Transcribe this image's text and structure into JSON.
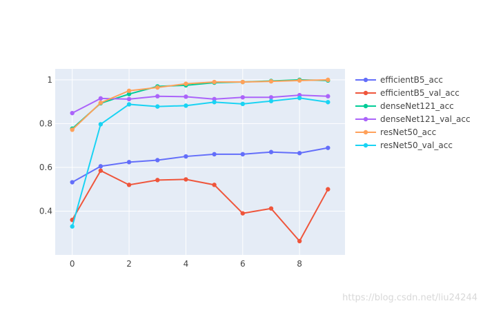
{
  "chart_data": {
    "type": "line",
    "x": [
      0,
      1,
      2,
      3,
      4,
      5,
      6,
      7,
      8,
      9
    ],
    "xlim": [
      -0.6,
      9.6
    ],
    "ylim": [
      0.2,
      1.05
    ],
    "xticks": [
      0,
      2,
      4,
      6,
      8
    ],
    "yticks": [
      0.4,
      0.6,
      0.8,
      1
    ],
    "grid": true,
    "legend_position": "top-right",
    "plot_background": "#e5ecf6",
    "series": [
      {
        "name": "efficientB5_acc",
        "color": "#636efa",
        "values": [
          0.532,
          0.605,
          0.624,
          0.633,
          0.65,
          0.66,
          0.66,
          0.67,
          0.665,
          0.689
        ]
      },
      {
        "name": "efficientB5_val_acc",
        "color": "#ef553b",
        "values": [
          0.36,
          0.585,
          0.52,
          0.542,
          0.545,
          0.52,
          0.39,
          0.412,
          0.263,
          0.5
        ]
      },
      {
        "name": "denseNet121_acc",
        "color": "#00cc96",
        "values": [
          0.777,
          0.893,
          0.935,
          0.97,
          0.975,
          0.987,
          0.99,
          0.995,
          1.0,
          0.997
        ]
      },
      {
        "name": "denseNet121_val_acc",
        "color": "#ab63fa",
        "values": [
          0.848,
          0.915,
          0.912,
          0.925,
          0.923,
          0.912,
          0.92,
          0.92,
          0.93,
          0.925
        ]
      },
      {
        "name": "resNet50_acc",
        "color": "#ffa15a",
        "values": [
          0.772,
          0.895,
          0.95,
          0.965,
          0.982,
          0.99,
          0.99,
          0.993,
          0.997,
          1.0
        ]
      },
      {
        "name": "resNet50_val_acc",
        "color": "#19d3f3",
        "values": [
          0.33,
          0.797,
          0.888,
          0.878,
          0.882,
          0.898,
          0.89,
          0.903,
          0.917,
          0.898
        ]
      }
    ]
  },
  "watermark": "https://blog.csdn.net/liu24244"
}
